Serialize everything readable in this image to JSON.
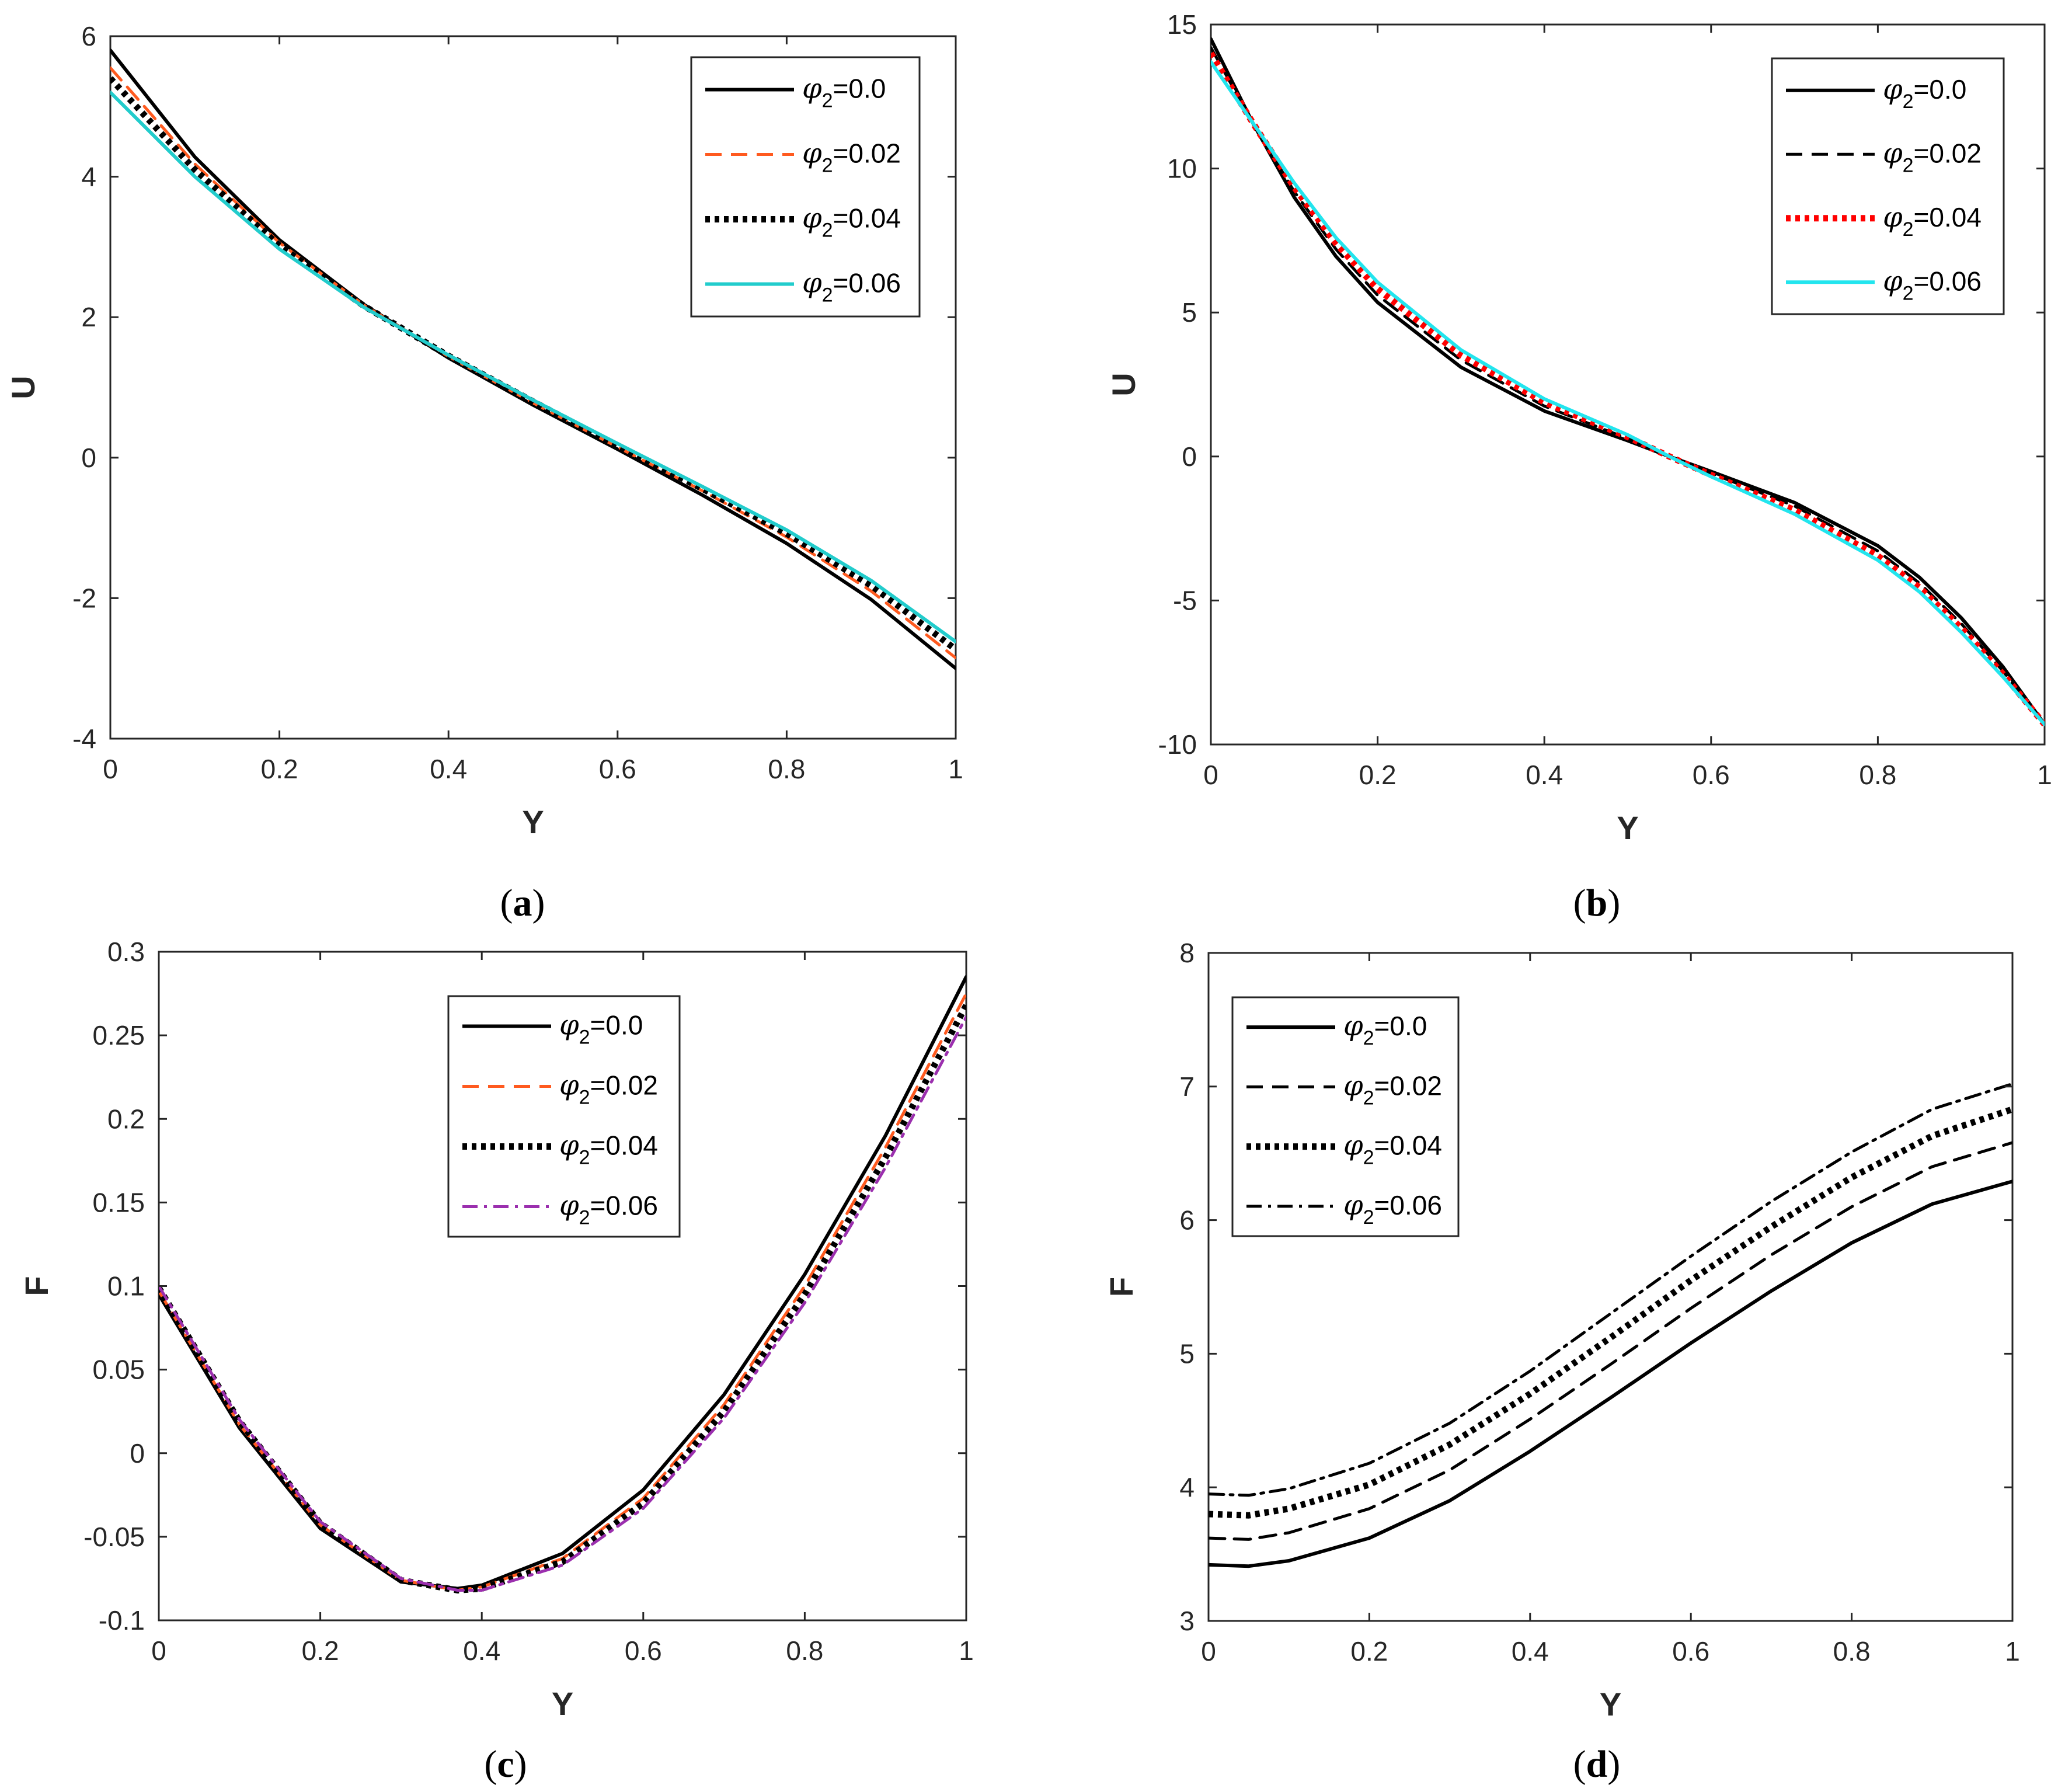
{
  "chart_data": [
    {
      "id": "a",
      "caption": {
        "open": "(",
        "letter": "a",
        "close": ")"
      },
      "type": "line",
      "xlabel": "Y",
      "ylabel": "U",
      "xlim": [
        0,
        1
      ],
      "ylim": [
        -4,
        6
      ],
      "xticks": [
        0,
        0.2,
        0.4,
        0.6,
        0.8,
        1
      ],
      "xtick_labels": [
        "0",
        "0.2",
        "0.4",
        "0.6",
        "0.8",
        "1"
      ],
      "yticks": [
        -4,
        -2,
        0,
        2,
        4,
        6
      ],
      "ytick_labels": [
        "-4",
        "-2",
        "0",
        "2",
        "4",
        "6"
      ],
      "legend": {
        "position": "top-right"
      },
      "x": [
        0,
        0.1,
        0.2,
        0.3,
        0.4,
        0.5,
        0.6,
        0.7,
        0.8,
        0.9,
        1.0
      ],
      "series": [
        {
          "symbol": "φ",
          "sub": "2",
          "value": "=0.0",
          "color": "#000000",
          "style": "solid",
          "width": 6,
          "values": [
            5.8,
            4.28,
            3.1,
            2.18,
            1.42,
            0.75,
            0.12,
            -0.53,
            -1.22,
            -2.02,
            -3.0
          ]
        },
        {
          "symbol": "φ",
          "sub": "2",
          "value": "=0.02",
          "color": "#FF5A1F",
          "style": "dashed",
          "width": 5,
          "values": [
            5.55,
            4.18,
            3.06,
            2.17,
            1.44,
            0.78,
            0.15,
            -0.47,
            -1.13,
            -1.9,
            -2.85
          ]
        },
        {
          "symbol": "φ",
          "sub": "2",
          "value": "=0.04",
          "color": "#000000",
          "style": "dotted",
          "width": 11,
          "values": [
            5.4,
            4.1,
            3.02,
            2.16,
            1.45,
            0.8,
            0.17,
            -0.44,
            -1.08,
            -1.82,
            -2.73
          ]
        },
        {
          "symbol": "φ",
          "sub": "2",
          "value": "=0.06",
          "color": "#22CCCC",
          "style": "solid",
          "width": 6,
          "values": [
            5.2,
            4.0,
            2.97,
            2.14,
            1.46,
            0.82,
            0.2,
            -0.41,
            -1.03,
            -1.75,
            -2.62
          ]
        }
      ]
    },
    {
      "id": "b",
      "caption": {
        "open": "(",
        "letter": "b",
        "close": ")"
      },
      "type": "line",
      "xlabel": "Y",
      "ylabel": "U",
      "xlim": [
        0,
        1
      ],
      "ylim": [
        -10,
        15
      ],
      "xticks": [
        0,
        0.2,
        0.4,
        0.6,
        0.8,
        1
      ],
      "xtick_labels": [
        "0",
        "0.2",
        "0.4",
        "0.6",
        "0.8",
        "1"
      ],
      "yticks": [
        -10,
        -5,
        0,
        5,
        10,
        15
      ],
      "ytick_labels": [
        "-10",
        "-5",
        "0",
        "5",
        "10",
        "15"
      ],
      "legend": {
        "position": "top-right"
      },
      "x": [
        0,
        0.05,
        0.1,
        0.15,
        0.2,
        0.3,
        0.4,
        0.5,
        0.55,
        0.6,
        0.7,
        0.8,
        0.85,
        0.9,
        0.95,
        1.0
      ],
      "series": [
        {
          "symbol": "φ",
          "sub": "2",
          "value": "=0.0",
          "color": "#000000",
          "style": "solid",
          "width": 6,
          "values": [
            14.5,
            11.6,
            9.0,
            6.95,
            5.35,
            3.1,
            1.58,
            0.55,
            0.0,
            -0.52,
            -1.6,
            -3.1,
            -4.2,
            -5.6,
            -7.3,
            -9.3
          ]
        },
        {
          "symbol": "φ",
          "sub": "2",
          "value": "=0.02",
          "color": "#000000",
          "style": "dashed",
          "width": 5,
          "values": [
            14.2,
            11.6,
            9.2,
            7.2,
            5.6,
            3.35,
            1.75,
            0.62,
            0.0,
            -0.58,
            -1.72,
            -3.28,
            -4.4,
            -5.8,
            -7.45,
            -9.3
          ]
        },
        {
          "symbol": "φ",
          "sub": "2",
          "value": "=0.04",
          "color": "#FF0000",
          "style": "dotted",
          "width": 11,
          "values": [
            14.0,
            11.6,
            9.35,
            7.4,
            5.82,
            3.52,
            1.88,
            0.68,
            0.0,
            -0.64,
            -1.86,
            -3.45,
            -4.55,
            -5.95,
            -7.55,
            -9.3
          ]
        },
        {
          "symbol": "φ",
          "sub": "2",
          "value": "=0.06",
          "color": "#22E5EE",
          "style": "solid",
          "width": 6,
          "values": [
            13.7,
            11.6,
            9.5,
            7.6,
            6.05,
            3.7,
            2.0,
            0.75,
            0.0,
            -0.7,
            -2.0,
            -3.6,
            -4.7,
            -6.1,
            -7.65,
            -9.3
          ]
        }
      ]
    },
    {
      "id": "c",
      "caption": {
        "open": "(",
        "letter": "c",
        "close": ")"
      },
      "type": "line",
      "xlabel": "Y",
      "ylabel": "F",
      "xlim": [
        0,
        1
      ],
      "ylim": [
        -0.1,
        0.3
      ],
      "xticks": [
        0,
        0.2,
        0.4,
        0.6,
        0.8,
        1
      ],
      "xtick_labels": [
        "0",
        "0.2",
        "0.4",
        "0.6",
        "0.8",
        "1"
      ],
      "yticks": [
        -0.1,
        -0.05,
        0,
        0.05,
        0.1,
        0.15,
        0.2,
        0.25,
        0.3
      ],
      "ytick_labels": [
        "-0.1",
        "-0.05",
        "0",
        "0.05",
        "0.1",
        "0.15",
        "0.2",
        "0.25",
        "0.3"
      ],
      "legend": {
        "position": "top-center"
      },
      "x": [
        0,
        0.1,
        0.2,
        0.3,
        0.37,
        0.4,
        0.5,
        0.6,
        0.7,
        0.8,
        0.9,
        1.0
      ],
      "series": [
        {
          "symbol": "φ",
          "sub": "2",
          "value": "=0.0",
          "color": "#000000",
          "style": "solid",
          "width": 6,
          "values": [
            0.095,
            0.015,
            -0.045,
            -0.077,
            -0.081,
            -0.079,
            -0.06,
            -0.022,
            0.035,
            0.107,
            0.19,
            0.285
          ]
        },
        {
          "symbol": "φ",
          "sub": "2",
          "value": "=0.02",
          "color": "#FF5A1F",
          "style": "dashed",
          "width": 5,
          "values": [
            0.097,
            0.017,
            -0.043,
            -0.076,
            -0.082,
            -0.08,
            -0.063,
            -0.027,
            0.029,
            0.1,
            0.183,
            0.275
          ]
        },
        {
          "symbol": "φ",
          "sub": "2",
          "value": "=0.04",
          "color": "#000000",
          "style": "dotted",
          "width": 11,
          "values": [
            0.099,
            0.019,
            -0.042,
            -0.076,
            -0.082,
            -0.081,
            -0.065,
            -0.03,
            0.025,
            0.095,
            0.177,
            0.268
          ]
        },
        {
          "symbol": "φ",
          "sub": "2",
          "value": "=0.06",
          "color": "#9B2FAE",
          "style": "dashdot",
          "width": 5,
          "values": [
            0.1,
            0.02,
            -0.041,
            -0.075,
            -0.082,
            -0.082,
            -0.067,
            -0.033,
            0.021,
            0.09,
            0.171,
            0.261
          ]
        }
      ]
    },
    {
      "id": "d",
      "caption": {
        "open": "(",
        "letter": "d",
        "close": ")"
      },
      "type": "line",
      "xlabel": "Y",
      "ylabel": "F",
      "xlim": [
        0,
        1
      ],
      "ylim": [
        3,
        8
      ],
      "xticks": [
        0,
        0.2,
        0.4,
        0.6,
        0.8,
        1
      ],
      "xtick_labels": [
        "0",
        "0.2",
        "0.4",
        "0.6",
        "0.8",
        "1"
      ],
      "yticks": [
        3,
        4,
        5,
        6,
        7,
        8
      ],
      "ytick_labels": [
        "3",
        "4",
        "5",
        "6",
        "7",
        "8"
      ],
      "legend": {
        "position": "top-left"
      },
      "x": [
        0,
        0.05,
        0.1,
        0.2,
        0.3,
        0.4,
        0.5,
        0.6,
        0.7,
        0.8,
        0.9,
        1.0
      ],
      "series": [
        {
          "symbol": "φ",
          "sub": "2",
          "value": "=0.0",
          "color": "#000000",
          "style": "solid",
          "width": 6,
          "values": [
            3.42,
            3.41,
            3.45,
            3.62,
            3.9,
            4.27,
            4.67,
            5.08,
            5.47,
            5.83,
            6.12,
            6.29
          ]
        },
        {
          "symbol": "φ",
          "sub": "2",
          "value": "=0.02",
          "color": "#000000",
          "style": "dashed",
          "width": 5,
          "values": [
            3.62,
            3.61,
            3.66,
            3.84,
            4.13,
            4.51,
            4.92,
            5.34,
            5.74,
            6.1,
            6.4,
            6.58
          ]
        },
        {
          "symbol": "φ",
          "sub": "2",
          "value": "=0.04",
          "color": "#000000",
          "style": "dotted",
          "width": 11,
          "values": [
            3.8,
            3.79,
            3.84,
            4.02,
            4.32,
            4.7,
            5.12,
            5.55,
            5.95,
            6.32,
            6.63,
            6.83
          ]
        },
        {
          "symbol": "φ",
          "sub": "2",
          "value": "=0.06",
          "color": "#000000",
          "style": "dashdot",
          "width": 5,
          "values": [
            3.95,
            3.94,
            3.99,
            4.18,
            4.48,
            4.87,
            5.3,
            5.73,
            6.14,
            6.51,
            6.83,
            7.02
          ]
        }
      ]
    }
  ]
}
